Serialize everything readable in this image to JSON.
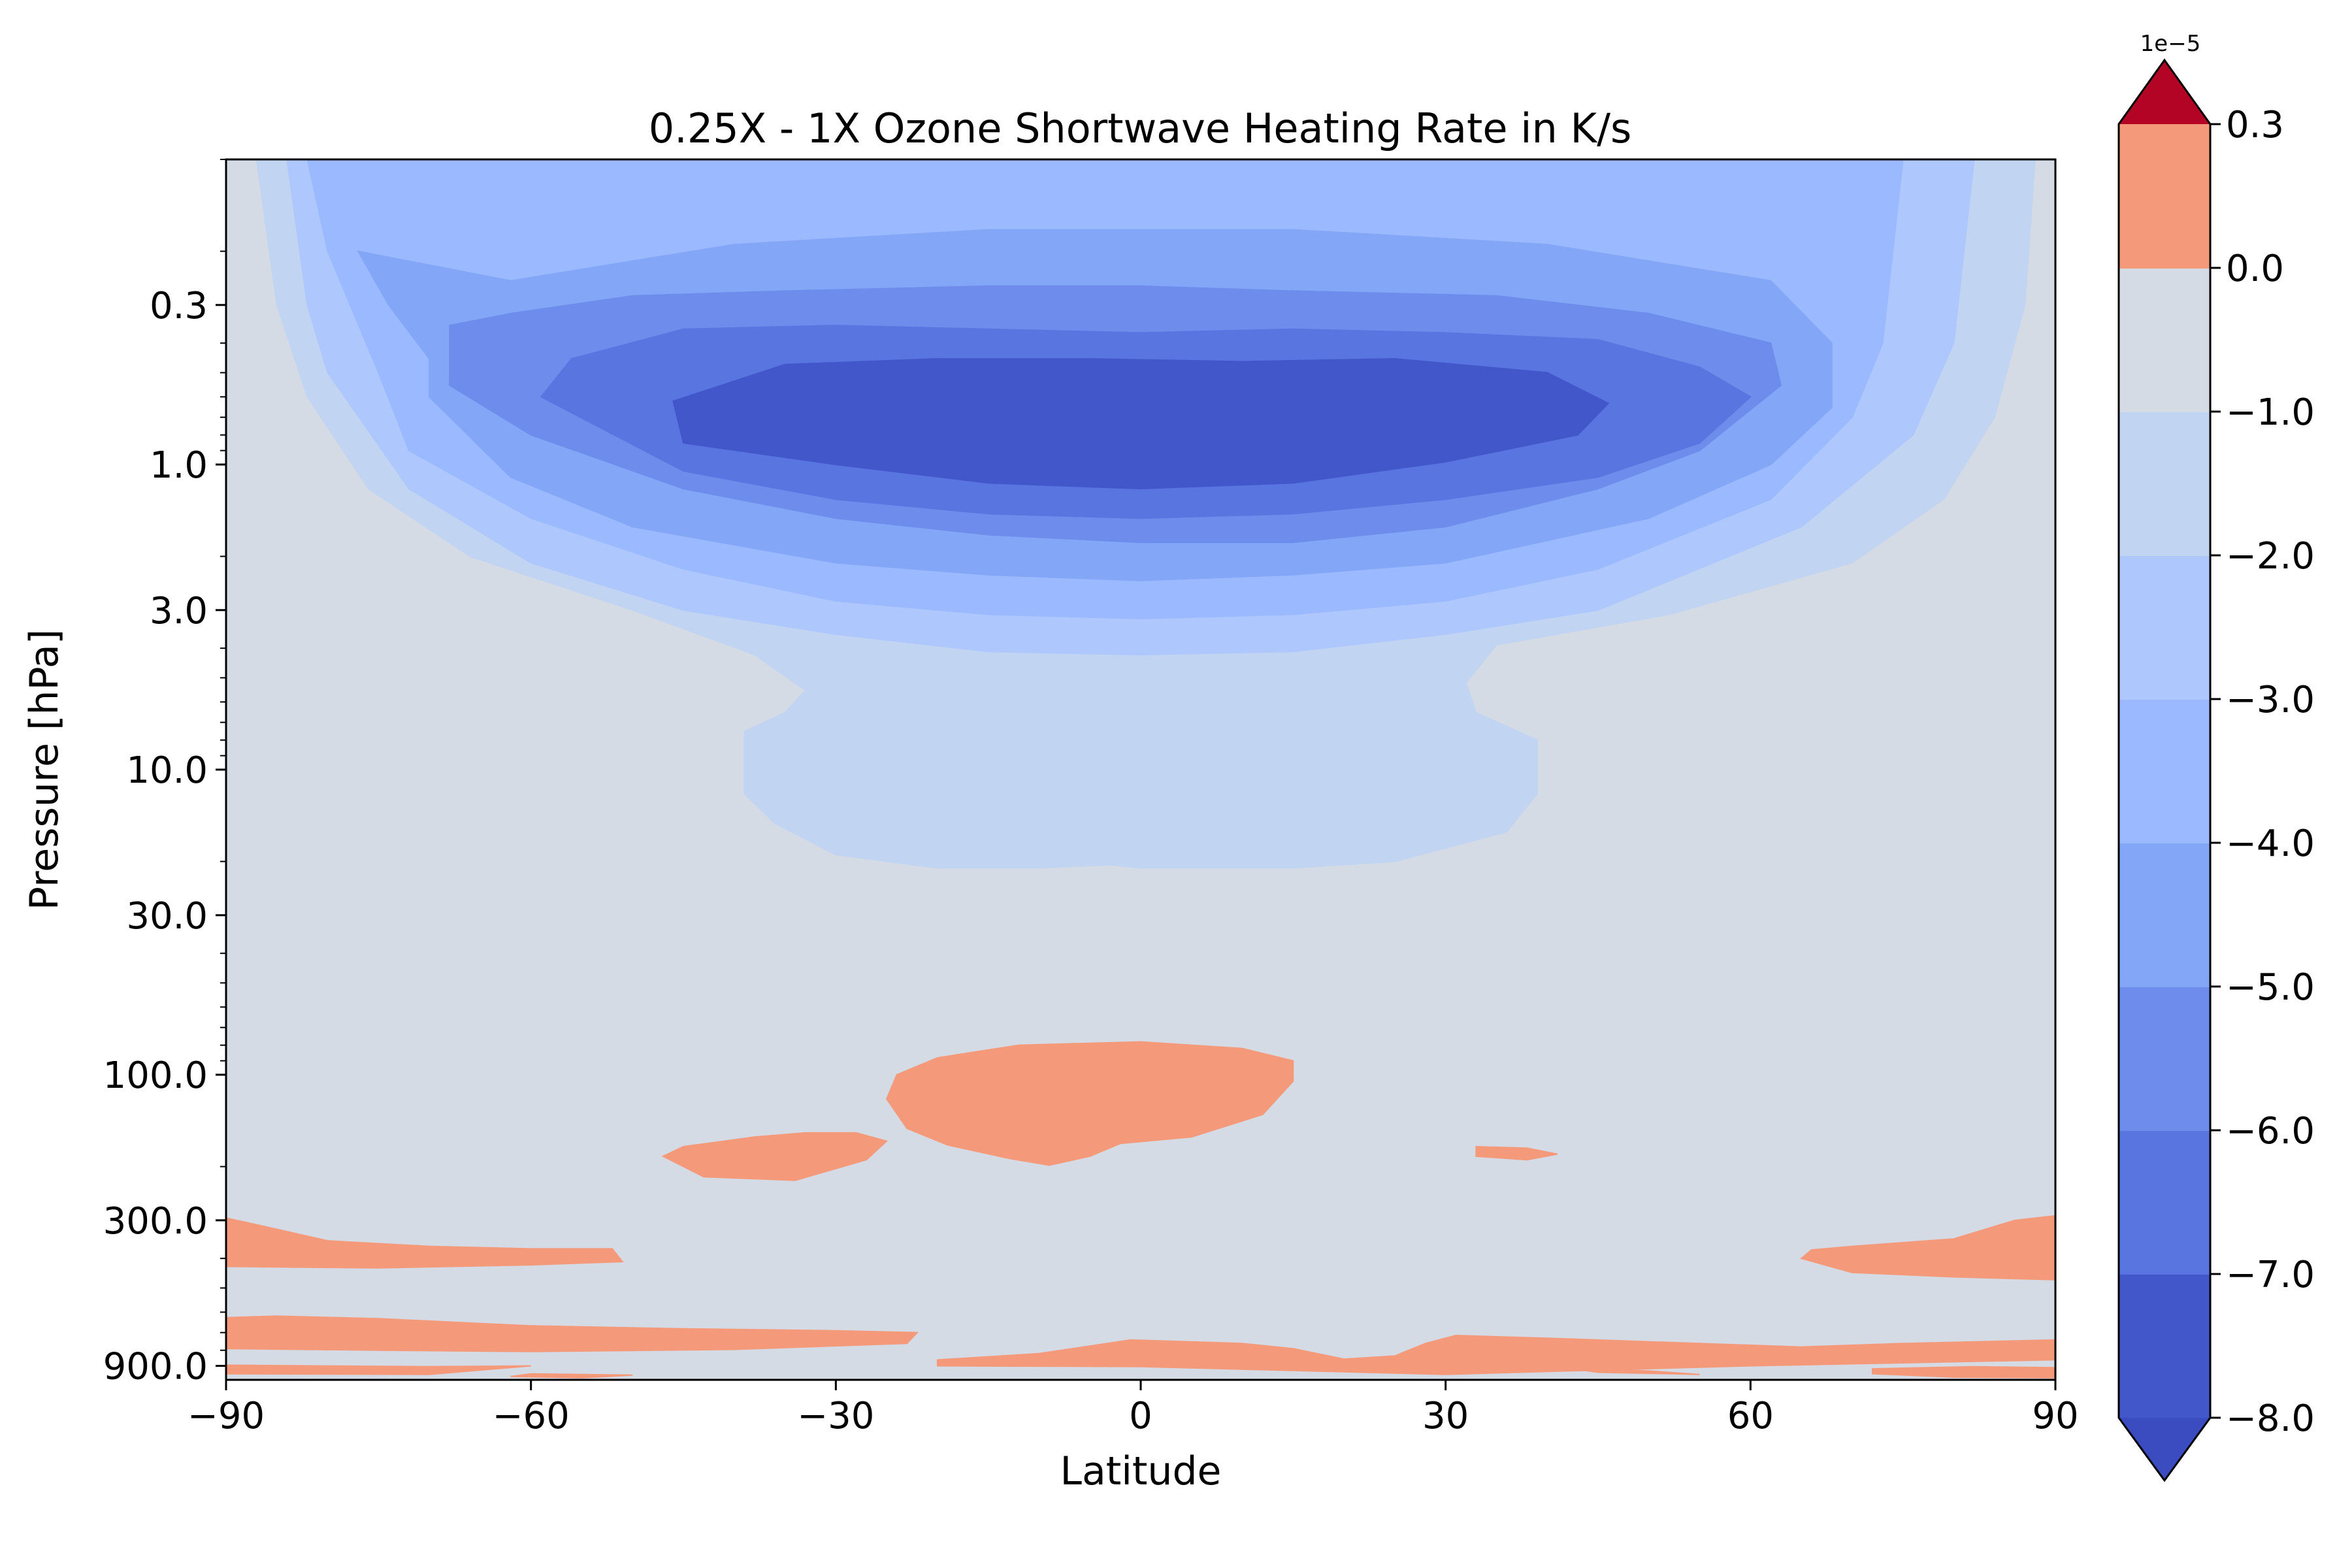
{
  "chart_data": {
    "type": "contourf",
    "title": "0.25X - 1X Ozone Shortwave Heating Rate in K/s",
    "xlabel": "Latitude",
    "ylabel": "Pressure [hPa]",
    "xlim": [
      -90,
      90
    ],
    "ylim": [
      1000,
      0.1
    ],
    "y_scale": "log",
    "x_ticks": [
      -90,
      -60,
      -30,
      0,
      30,
      60,
      90
    ],
    "x_tick_labels": [
      "−90",
      "−60",
      "−30",
      "0",
      "30",
      "60",
      "90"
    ],
    "y_ticks": [
      0.3,
      1.0,
      3.0,
      10.0,
      30.0,
      100.0,
      300.0,
      900.0
    ],
    "y_tick_labels": [
      "0.3",
      "1.0",
      "3.0",
      "10.0",
      "30.0",
      "100.0",
      "300.0",
      "900.0"
    ],
    "colorbar": {
      "offset_text": "1e−5",
      "extend": "both",
      "levels": [
        -8.0,
        -7.0,
        -6.0,
        -5.0,
        -4.0,
        -3.0,
        -2.0,
        -1.0,
        0.0,
        0.3
      ],
      "tick_labels": [
        "−8.0",
        "−7.0",
        "−6.0",
        "−5.0",
        "−4.0",
        "−3.0",
        "−2.0",
        "−1.0",
        "0.0",
        "0.3"
      ],
      "colors": [
        "#4257ca",
        "#5875e0",
        "#6d8ceb",
        "#84a6f7",
        "#9bb9fe",
        "#aec7fc",
        "#c1d4f2",
        "#d5dbe5",
        "#f49a7b"
      ],
      "under_color": "#3b4cc0",
      "over_color": "#b40426"
    },
    "background_level_color": "#d5dbe5",
    "regions": [
      {
        "level": "-1.0 to 0.0",
        "color": "#c1d4f2",
        "points": [
          [
            -87,
            0.1
          ],
          [
            -85,
            0.3
          ],
          [
            -82,
            0.6
          ],
          [
            -76,
            1.2
          ],
          [
            -66,
            2.0
          ],
          [
            -50,
            3.0
          ],
          [
            -38,
            4.2
          ],
          [
            -33,
            5.5
          ],
          [
            -35,
            6.5
          ],
          [
            -39,
            7.5
          ],
          [
            -39,
            12
          ],
          [
            -36,
            15
          ],
          [
            -30,
            19
          ],
          [
            -20,
            21
          ],
          [
            -10,
            21
          ],
          [
            -3,
            20.5
          ],
          [
            0,
            21
          ],
          [
            5,
            21
          ],
          [
            15,
            21
          ],
          [
            25,
            20
          ],
          [
            36,
            16
          ],
          [
            39,
            12
          ],
          [
            39,
            8
          ],
          [
            33,
            6.5
          ],
          [
            32,
            5.2
          ],
          [
            35,
            3.9
          ],
          [
            52,
            3.1
          ],
          [
            70,
            2.1
          ],
          [
            79,
            1.3
          ],
          [
            84,
            0.7
          ],
          [
            87,
            0.3
          ],
          [
            88,
            0.1
          ]
        ]
      },
      {
        "level": "-2.0 to -1.0",
        "color": "#aec7fc",
        "points": [
          [
            -84,
            0.1
          ],
          [
            -82,
            0.3
          ],
          [
            -80,
            0.5
          ],
          [
            -72,
            1.2
          ],
          [
            -60,
            2.1
          ],
          [
            -45,
            3.0
          ],
          [
            -30,
            3.6
          ],
          [
            -15,
            4.1
          ],
          [
            0,
            4.2
          ],
          [
            15,
            4.1
          ],
          [
            30,
            3.6
          ],
          [
            45,
            3.0
          ],
          [
            65,
            1.6
          ],
          [
            76,
            0.8
          ],
          [
            80,
            0.4
          ],
          [
            81,
            0.2
          ],
          [
            82,
            0.1
          ]
        ]
      },
      {
        "level": "-3.0 to -2.0",
        "color": "#9bb9fe",
        "points": [
          [
            -82,
            0.1
          ],
          [
            -80,
            0.2
          ],
          [
            -75,
            0.5
          ],
          [
            -72,
            0.9
          ],
          [
            -60,
            1.5
          ],
          [
            -45,
            2.2
          ],
          [
            -30,
            2.8
          ],
          [
            -15,
            3.1
          ],
          [
            0,
            3.2
          ],
          [
            15,
            3.1
          ],
          [
            30,
            2.8
          ],
          [
            45,
            2.2
          ],
          [
            62,
            1.3
          ],
          [
            70,
            0.7
          ],
          [
            73,
            0.4
          ],
          [
            75,
            0.1
          ]
        ]
      },
      {
        "level": "-4.0 to -3.0",
        "color": "#84a6f7",
        "points": [
          [
            -77,
            0.2
          ],
          [
            -74,
            0.3
          ],
          [
            -70,
            0.45
          ],
          [
            -70,
            0.6
          ],
          [
            -62,
            1.1
          ],
          [
            -50,
            1.6
          ],
          [
            -30,
            2.1
          ],
          [
            -15,
            2.3
          ],
          [
            0,
            2.4
          ],
          [
            15,
            2.3
          ],
          [
            30,
            2.1
          ],
          [
            50,
            1.5
          ],
          [
            62,
            1.0
          ],
          [
            68,
            0.65
          ],
          [
            68,
            0.4
          ],
          [
            62,
            0.25
          ],
          [
            40,
            0.19
          ],
          [
            15,
            0.17
          ],
          [
            0,
            0.17
          ],
          [
            -15,
            0.17
          ],
          [
            -40,
            0.19
          ],
          [
            -62,
            0.25
          ]
        ]
      },
      {
        "level": "-5.0 to -4.0",
        "color": "#6d8ceb",
        "points": [
          [
            -68,
            0.35
          ],
          [
            -62,
            0.32
          ],
          [
            -50,
            0.28
          ],
          [
            -35,
            0.27
          ],
          [
            -15,
            0.26
          ],
          [
            0,
            0.26
          ],
          [
            15,
            0.27
          ],
          [
            35,
            0.28
          ],
          [
            50,
            0.32
          ],
          [
            62,
            0.4
          ],
          [
            63,
            0.55
          ],
          [
            55,
            0.9
          ],
          [
            45,
            1.2
          ],
          [
            30,
            1.6
          ],
          [
            15,
            1.8
          ],
          [
            0,
            1.8
          ],
          [
            -15,
            1.7
          ],
          [
            -30,
            1.5
          ],
          [
            -45,
            1.2
          ],
          [
            -60,
            0.8
          ],
          [
            -68,
            0.55
          ]
        ]
      },
      {
        "level": "-6.0 to -5.0",
        "color": "#5875e0",
        "points": [
          [
            -59,
            0.6
          ],
          [
            -56,
            0.45
          ],
          [
            -45,
            0.36
          ],
          [
            -30,
            0.35
          ],
          [
            -15,
            0.36
          ],
          [
            0,
            0.37
          ],
          [
            15,
            0.36
          ],
          [
            30,
            0.37
          ],
          [
            45,
            0.39
          ],
          [
            55,
            0.48
          ],
          [
            60,
            0.6
          ],
          [
            55,
            0.85
          ],
          [
            45,
            1.1
          ],
          [
            30,
            1.3
          ],
          [
            15,
            1.45
          ],
          [
            0,
            1.5
          ],
          [
            -15,
            1.45
          ],
          [
            -30,
            1.3
          ],
          [
            -45,
            1.05
          ]
        ]
      },
      {
        "level": "-7.0 to -6.0",
        "color": "#4257ca",
        "points": [
          [
            -46,
            0.62
          ],
          [
            -35,
            0.47
          ],
          [
            -20,
            0.45
          ],
          [
            -5,
            0.45
          ],
          [
            10,
            0.46
          ],
          [
            25,
            0.45
          ],
          [
            40,
            0.5
          ],
          [
            46,
            0.63
          ],
          [
            43,
            0.8
          ],
          [
            30,
            0.98
          ],
          [
            15,
            1.15
          ],
          [
            0,
            1.2
          ],
          [
            -15,
            1.15
          ],
          [
            -30,
            1.0
          ],
          [
            -45,
            0.85
          ]
        ]
      },
      {
        "level": "0.0 to 0.3",
        "color": "#f49a7b",
        "points": [
          [
            -25,
            120
          ],
          [
            -24,
            100
          ],
          [
            -20,
            88
          ],
          [
            -12,
            80
          ],
          [
            0,
            78
          ],
          [
            10,
            82
          ],
          [
            15,
            90
          ],
          [
            15,
            105
          ],
          [
            12,
            135
          ],
          [
            5,
            160
          ],
          [
            -2,
            168
          ],
          [
            -5,
            185
          ],
          [
            -9,
            198
          ],
          [
            -13,
            188
          ],
          [
            -19,
            170
          ],
          [
            -23,
            150
          ]
        ]
      },
      {
        "level": "0.0 to 0.3",
        "color": "#f49a7b",
        "points": [
          [
            -47,
            185
          ],
          [
            -45,
            172
          ],
          [
            -38,
            160
          ],
          [
            -33,
            155
          ],
          [
            -28,
            155
          ],
          [
            -25,
            165
          ],
          [
            -27,
            190
          ],
          [
            -34,
            222
          ],
          [
            -43,
            216
          ]
        ]
      },
      {
        "level": "0.0 to 0.3",
        "color": "#f49a7b",
        "points": [
          [
            33,
            172
          ],
          [
            38,
            174
          ],
          [
            41,
            182
          ],
          [
            38,
            190
          ],
          [
            33,
            185
          ]
        ]
      },
      {
        "level": "0.0 to 0.3",
        "color": "#f49a7b",
        "points": [
          [
            -90,
            295
          ],
          [
            -87,
            310
          ],
          [
            -80,
            350
          ],
          [
            -70,
            365
          ],
          [
            -60,
            372
          ],
          [
            -52,
            372
          ],
          [
            -51,
            410
          ],
          [
            -60,
            420
          ],
          [
            -75,
            430
          ],
          [
            -90,
            425
          ]
        ]
      },
      {
        "level": "0.0 to 0.3",
        "color": "#f49a7b",
        "points": [
          [
            90,
            290
          ],
          [
            86,
            300
          ],
          [
            80,
            345
          ],
          [
            70,
            365
          ],
          [
            66,
            375
          ],
          [
            65,
            400
          ],
          [
            70,
            445
          ],
          [
            80,
            460
          ],
          [
            90,
            470
          ]
        ]
      },
      {
        "level": "0.0 to 0.3",
        "color": "#f49a7b",
        "points": [
          [
            -90,
            625
          ],
          [
            -85,
            618
          ],
          [
            -75,
            630
          ],
          [
            -60,
            665
          ],
          [
            -45,
            680
          ],
          [
            -30,
            690
          ],
          [
            -22,
            700
          ],
          [
            -23,
            760
          ],
          [
            -40,
            795
          ],
          [
            -60,
            808
          ],
          [
            -75,
            800
          ],
          [
            -90,
            790
          ]
        ]
      },
      {
        "level": "0.0 to 0.3",
        "color": "#f49a7b",
        "points": [
          [
            -20,
            860
          ],
          [
            -10,
            820
          ],
          [
            -1,
            740
          ],
          [
            5,
            750
          ],
          [
            10,
            760
          ],
          [
            15,
            790
          ],
          [
            20,
            855
          ],
          [
            25,
            835
          ],
          [
            28,
            760
          ],
          [
            31,
            715
          ],
          [
            40,
            730
          ],
          [
            55,
            760
          ],
          [
            65,
            780
          ],
          [
            75,
            760
          ],
          [
            90,
            740
          ],
          [
            90,
            860
          ],
          [
            60,
            900
          ],
          [
            30,
            960
          ],
          [
            0,
            905
          ],
          [
            -20,
            900
          ]
        ]
      },
      {
        "level": "0.0 to 0.3",
        "color": "#f49a7b",
        "points": [
          [
            -90,
            895
          ],
          [
            -70,
            905
          ],
          [
            -60,
            900
          ],
          [
            -70,
            960
          ],
          [
            -90,
            955
          ]
        ]
      },
      {
        "level": "0.0 to 0.3",
        "color": "#f49a7b",
        "points": [
          [
            -60,
            955
          ],
          [
            -50,
            965
          ],
          [
            -55,
            985
          ],
          [
            -62,
            975
          ]
        ]
      },
      {
        "level": "0.0 to 0.3",
        "color": "#f49a7b",
        "points": [
          [
            42,
            915
          ],
          [
            50,
            935
          ],
          [
            55,
            960
          ],
          [
            45,
            945
          ]
        ]
      },
      {
        "level": "0.0 to 0.3",
        "color": "#f49a7b",
        "points": [
          [
            72,
            920
          ],
          [
            82,
            905
          ],
          [
            90,
            912
          ],
          [
            90,
            985
          ],
          [
            80,
            980
          ],
          [
            72,
            955
          ]
        ]
      }
    ]
  }
}
